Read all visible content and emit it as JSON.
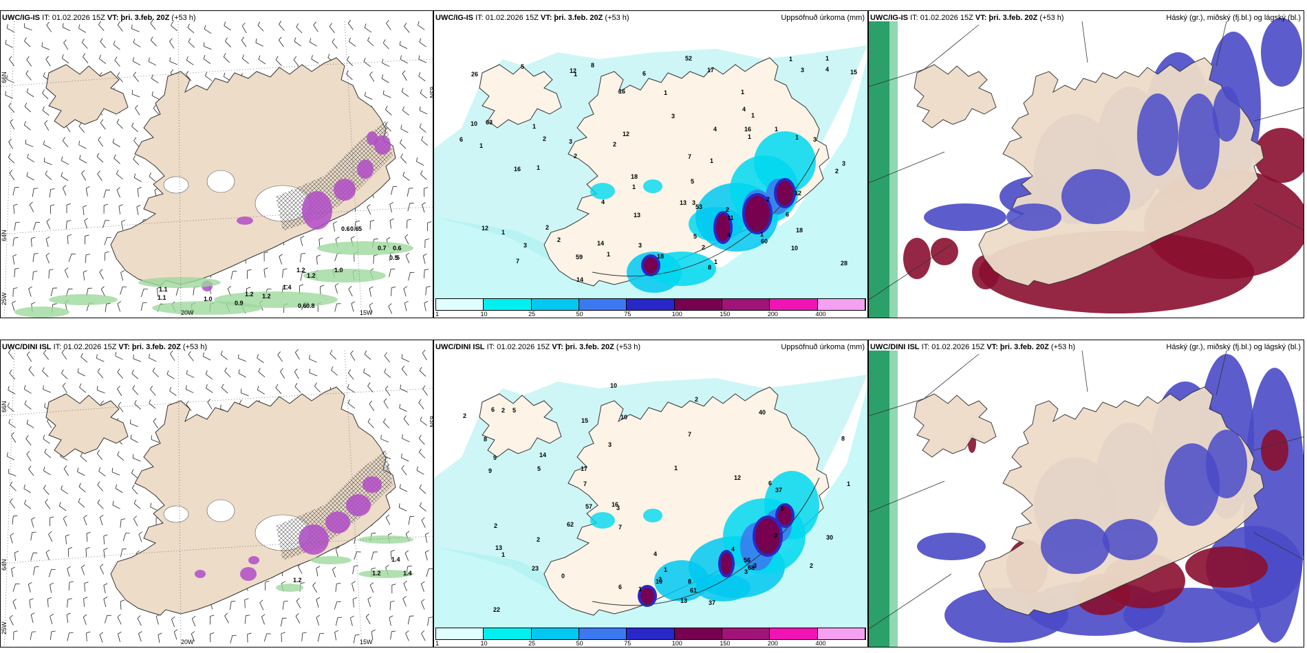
{
  "panels": [
    {
      "model": "UWC/IG-IS",
      "it": "IT: 01.02.2026 15Z",
      "vt_prefix": "VT:",
      "vt": "þri. 3.feb. 20Z",
      "lead": "(+53 h)",
      "title": ""
    },
    {
      "model": "UWC/IG-IS",
      "it": "IT: 01.02.2026 15Z",
      "vt_prefix": "VT:",
      "vt": "þri. 3.feb. 20Z",
      "lead": "(+53 h)",
      "title": "Uppsöfnuð úrkoma (mm)"
    },
    {
      "model": "UWC/IG-IS",
      "it": "IT: 01.02.2026 15Z",
      "vt_prefix": "VT:",
      "vt": "þri. 3.feb. 20Z",
      "lead": "(+53 h)",
      "title": "Háský (gr.), miðský (fj.bl.) og lágský (bl.)"
    },
    {
      "model": "UWC/DINI ISL",
      "it": "IT: 01.02.2026 15Z",
      "vt_prefix": "VT:",
      "vt": "þri. 3.feb. 20Z",
      "lead": "(+53 h)",
      "title": ""
    },
    {
      "model": "UWC/DINI ISL",
      "it": "IT: 01.02.2026 15Z",
      "vt_prefix": "VT:",
      "vt": "þri. 3.feb. 20Z",
      "lead": "(+53 h)",
      "title": "Uppsöfnuð úrkoma (mm)"
    },
    {
      "model": "UWC/DINI ISL",
      "it": "IT: 01.02.2026 15Z",
      "vt_prefix": "VT:",
      "vt": "þri. 3.feb. 20Z",
      "lead": "(+53 h)",
      "title": "Háský (gr.), miðský (fj.bl.) og lágský (bl.)"
    }
  ],
  "axis_labels": {
    "lat66": "66N",
    "lat64": "64N",
    "lat63": "63N",
    "w25": "25W",
    "w20": "20W",
    "w15": "15W"
  },
  "colorbar": {
    "labels": [
      "1",
      "10",
      "25",
      "50",
      "75",
      "100",
      "150",
      "200",
      "400"
    ],
    "colors": [
      "#e0ffff",
      "#00f0f0",
      "#00c8f0",
      "#3c78f0",
      "#2828c8",
      "#780050",
      "#a01478",
      "#f014b4",
      "#f5a0f0"
    ]
  },
  "ig_precip_labels": [
    "1",
    "1",
    "2",
    "1",
    "1",
    "2",
    "2",
    "2",
    "1",
    "2",
    "1",
    "10",
    "18",
    "3",
    "1",
    "1",
    "1",
    "3",
    "2",
    "1",
    "1",
    "53",
    "59",
    "60",
    "1",
    "1",
    "1",
    "2",
    "18",
    "16",
    "11",
    "1",
    "1",
    "14",
    "8",
    "3",
    "52",
    "63",
    "3",
    "2",
    "6",
    "7",
    "15",
    "18",
    "17",
    "12",
    "13",
    "13",
    "5",
    "4",
    "4",
    "3",
    "3",
    "4",
    "26",
    "28",
    "10",
    "12",
    "14",
    "12",
    "6",
    "8",
    "16",
    "16",
    "12",
    "7",
    "5",
    "5",
    "4",
    "2",
    "3",
    "4",
    "3",
    "1",
    "1",
    "6"
  ],
  "dini_precip_labels": [
    "6",
    "1",
    "1",
    "2",
    "1",
    "1",
    "2",
    "2",
    "6",
    "14",
    "2",
    "2",
    "1",
    "37",
    "40",
    "61",
    "56",
    "68",
    "30",
    "37",
    "5",
    "5",
    "5",
    "7",
    "8",
    "0",
    "2",
    "13",
    "15",
    "17",
    "6",
    "4",
    "3",
    "4",
    "3",
    "3",
    "2",
    "3",
    "3",
    "62",
    "22",
    "23",
    "57",
    "13",
    "9",
    "7",
    "9",
    "7",
    "10",
    "10",
    "10",
    "8",
    "16",
    "12",
    "8"
  ],
  "ig_wind_labels": [
    "0.6",
    "0.6",
    "5",
    "0.7",
    "0.6",
    "0.5",
    "5",
    "1.0",
    "1.2",
    "1.2",
    "1.4",
    "1.1",
    "1.0",
    "1.2",
    "1.2",
    "0.9",
    "0.6",
    "0.8",
    "1.1"
  ],
  "dini_wind_labels": [
    "1.4",
    "1.2",
    "1.4",
    "1.2"
  ]
}
